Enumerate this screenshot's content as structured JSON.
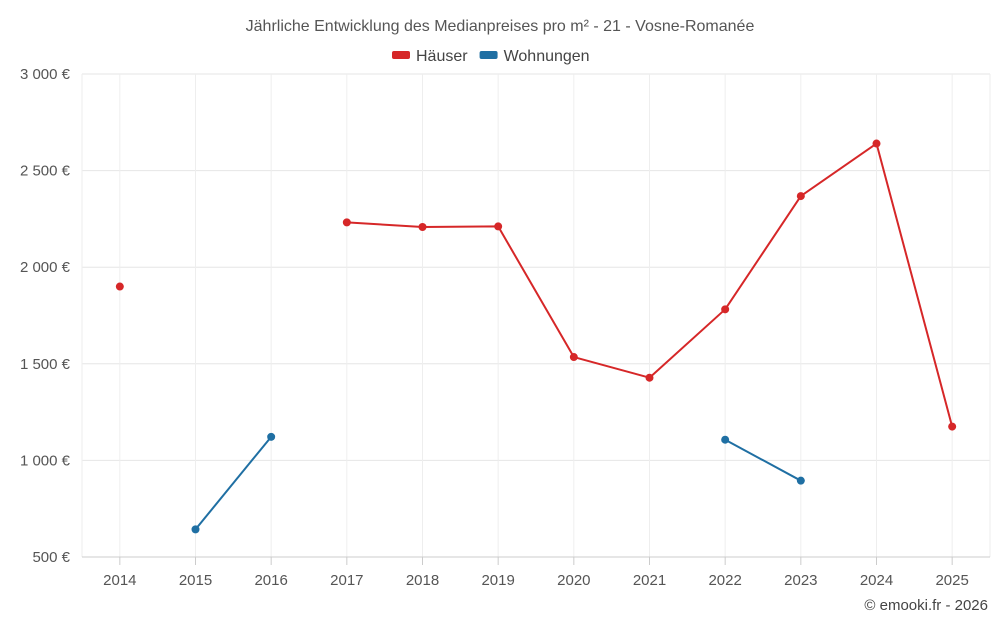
{
  "chart_data": {
    "type": "line",
    "title": "Jährliche Entwicklung des Medianpreises pro m² - 21 - Vosne-Romanée",
    "categories": [
      "2014",
      "2015",
      "2016",
      "2017",
      "2018",
      "2019",
      "2020",
      "2021",
      "2022",
      "2023",
      "2024",
      "2025"
    ],
    "series": [
      {
        "name": "Häuser",
        "color": "#d62728",
        "values": [
          1900,
          null,
          null,
          2232,
          2208,
          2211,
          1535,
          1428,
          1782,
          2368,
          2640,
          1175
        ]
      },
      {
        "name": "Wohnungen",
        "color": "#1f6fa3",
        "values": [
          null,
          643,
          1122,
          null,
          null,
          null,
          null,
          null,
          1107,
          895,
          null,
          null
        ]
      }
    ],
    "ylim": [
      500,
      3000
    ],
    "yticks": [
      500,
      1000,
      1500,
      2000,
      2500,
      3000
    ],
    "ytick_labels": [
      "500 €",
      "1 000 €",
      "1 500 €",
      "2 000 €",
      "2 500 €",
      "3 000 €"
    ],
    "xlabel": "",
    "ylabel": "",
    "grid": true,
    "legend_position": "top-center"
  },
  "credit": "© emooki.fr - 2026"
}
